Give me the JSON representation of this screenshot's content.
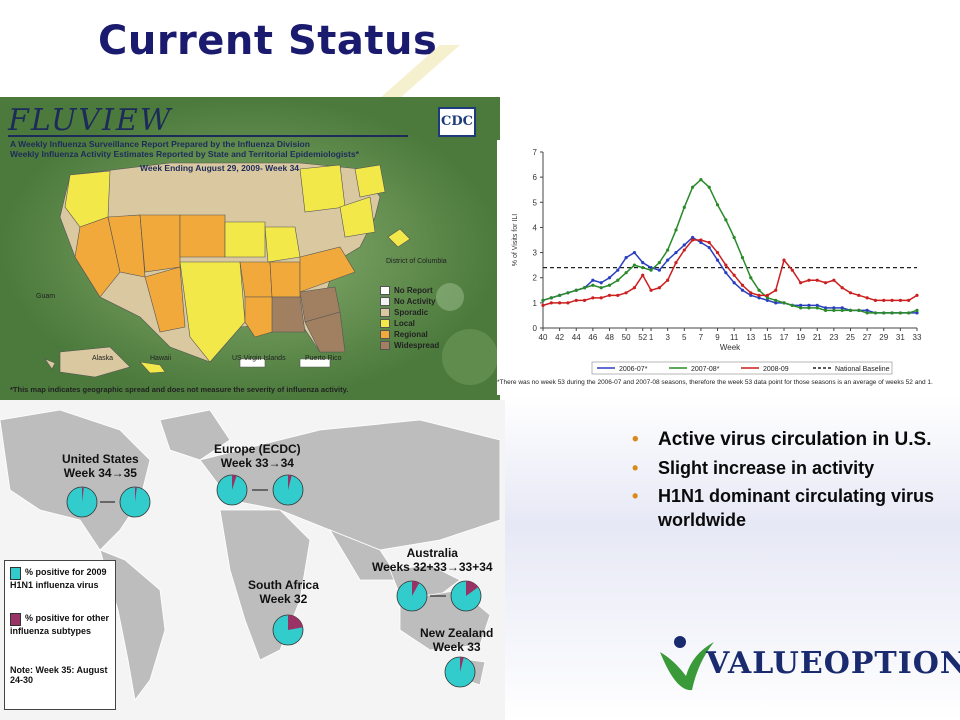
{
  "slide": {
    "title": "Current Status"
  },
  "fluview": {
    "logo": "FLUVIEW",
    "subtitle1": "A Weekly Influenza Surveillance Report Prepared by the Influenza Division",
    "subtitle2": "Weekly Influenza Activity Estimates Reported by State and Territorial Epidemiologists*",
    "week": "Week Ending August 29, 2009- Week 34",
    "agency": "CDC",
    "dc_label": "District of Columbia",
    "legend": [
      {
        "label": "No Report",
        "color": "#ffffff"
      },
      {
        "label": "No Activity",
        "color": "#f2f2f2"
      },
      {
        "label": "Sporadic",
        "color": "#d9c8a0"
      },
      {
        "label": "Local",
        "color": "#f2e84a"
      },
      {
        "label": "Regional",
        "color": "#f2a93b"
      },
      {
        "label": "Widespread",
        "color": "#a08060"
      }
    ],
    "insets": [
      "Guam",
      "Alaska",
      "Hawaii",
      "US Virgin Islands",
      "Puerto Rico"
    ],
    "footnote": "*This map indicates geographic spread and does not measure the severity of influenza activity."
  },
  "chart_data": {
    "type": "line",
    "ylabel": "% of Visits for ILI",
    "xlabel": "Week",
    "ylim": [
      0,
      7
    ],
    "yticks": [
      "0",
      "1",
      "2",
      "3",
      "4",
      "5",
      "6",
      "7"
    ],
    "categories": [
      "40",
      "41",
      "42",
      "43",
      "44",
      "45",
      "46",
      "47",
      "48",
      "49",
      "50",
      "51",
      "52",
      "1",
      "2",
      "3",
      "4",
      "5",
      "6",
      "7",
      "8",
      "9",
      "10",
      "11",
      "12",
      "13",
      "14",
      "15",
      "16",
      "17",
      "18",
      "19",
      "20",
      "21",
      "22",
      "23",
      "24",
      "25",
      "26",
      "27",
      "28",
      "29",
      "30",
      "31",
      "32",
      "33"
    ],
    "xticks": [
      "40",
      "42",
      "44",
      "46",
      "48",
      "50",
      "52",
      "1",
      "3",
      "5",
      "7",
      "9",
      "11",
      "13",
      "15",
      "17",
      "19",
      "21",
      "23",
      "25",
      "27",
      "29",
      "31",
      "33"
    ],
    "baseline": 2.4,
    "series": [
      {
        "name": "2006-07*",
        "color": "#2a3fbf",
        "values": [
          1.1,
          1.2,
          1.3,
          1.4,
          1.5,
          1.6,
          1.9,
          1.8,
          2.0,
          2.3,
          2.8,
          3.0,
          2.6,
          2.4,
          2.3,
          2.7,
          3.0,
          3.3,
          3.6,
          3.4,
          3.2,
          2.7,
          2.2,
          1.8,
          1.5,
          1.3,
          1.2,
          1.1,
          1.0,
          1.0,
          0.9,
          0.9,
          0.9,
          0.9,
          0.8,
          0.8,
          0.8,
          0.7,
          0.7,
          0.7,
          0.6,
          0.6,
          0.6,
          0.6,
          0.6,
          0.6
        ]
      },
      {
        "name": "2007-08*",
        "color": "#2a8a2a",
        "values": [
          1.1,
          1.2,
          1.3,
          1.4,
          1.5,
          1.6,
          1.7,
          1.6,
          1.7,
          1.9,
          2.2,
          2.5,
          2.4,
          2.3,
          2.6,
          3.1,
          3.9,
          4.8,
          5.6,
          5.9,
          5.6,
          4.9,
          4.3,
          3.6,
          2.8,
          2.0,
          1.5,
          1.2,
          1.1,
          1.0,
          0.9,
          0.8,
          0.8,
          0.8,
          0.7,
          0.7,
          0.7,
          0.7,
          0.7,
          0.6,
          0.6,
          0.6,
          0.6,
          0.6,
          0.6,
          0.7
        ]
      },
      {
        "name": "2008-09",
        "color": "#cc1f1f",
        "values": [
          0.9,
          1.0,
          1.0,
          1.0,
          1.1,
          1.1,
          1.2,
          1.2,
          1.3,
          1.3,
          1.4,
          1.6,
          2.1,
          1.5,
          1.6,
          1.9,
          2.6,
          3.1,
          3.5,
          3.5,
          3.4,
          3.0,
          2.5,
          2.1,
          1.7,
          1.4,
          1.3,
          1.3,
          1.5,
          2.7,
          2.3,
          1.8,
          1.9,
          1.9,
          1.8,
          1.9,
          1.6,
          1.4,
          1.3,
          1.2,
          1.1,
          1.1,
          1.1,
          1.1,
          1.1,
          1.3
        ]
      }
    ],
    "legend": [
      "2006-07*",
      "2007-08*",
      "2008-09",
      "National Baseline"
    ],
    "footnote": "*There was no week 53 during the 2006-07 and 2007-08 seasons, therefore the week 53 data point for those seasons is an average of weeks 52 and 1."
  },
  "world": {
    "regions": [
      {
        "title": "United States",
        "sub": "Week 34→35"
      },
      {
        "title": "Europe (ECDC)",
        "sub": "Week 33→34"
      },
      {
        "title": "South Africa",
        "sub": "Week 32"
      },
      {
        "title": "Australia",
        "sub": "Weeks 32+33→33+34"
      },
      {
        "title": "New Zealand",
        "sub": "Week 33"
      }
    ],
    "legend": {
      "h1n1": "% positive for 2009 H1N1 influenza virus",
      "other": "% positive for other influenza subtypes",
      "note": "Note: Week 35: August 24-30"
    },
    "colors": {
      "h1n1": "#33cccc",
      "other": "#993366"
    }
  },
  "bullets": [
    "Active virus circulation in U.S.",
    "Slight increase in activity",
    "H1N1 dominant circulating virus worldwide"
  ],
  "brand": {
    "name": "VALUEOPTIONS",
    "registered": "®"
  }
}
